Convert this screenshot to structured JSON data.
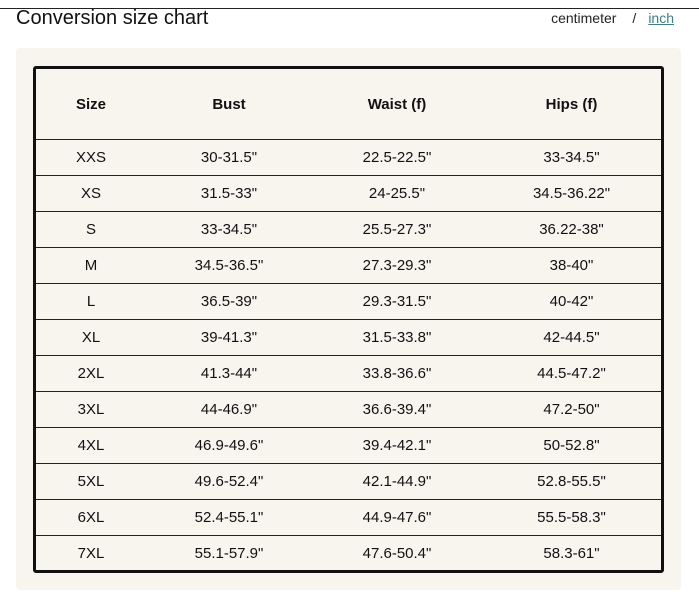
{
  "header": {
    "title": "Conversion size chart",
    "units": {
      "centimeter": "centimeter",
      "separator": "/",
      "inch": "inch",
      "active": "inch"
    }
  },
  "table": {
    "columns": [
      "Size",
      "Bust",
      "Waist (f)",
      "Hips (f)"
    ],
    "rows": [
      [
        "XXS",
        "30-31.5\"",
        "22.5-22.5\"",
        "33-34.5\""
      ],
      [
        "XS",
        "31.5-33\"",
        "24-25.5\"",
        "34.5-36.22\""
      ],
      [
        "S",
        "33-34.5\"",
        "25.5-27.3\"",
        "36.22-38\""
      ],
      [
        "M",
        "34.5-36.5\"",
        "27.3-29.3\"",
        "38-40\""
      ],
      [
        "L",
        "36.5-39\"",
        "29.3-31.5\"",
        "40-42\""
      ],
      [
        "XL",
        "39-41.3\"",
        "31.5-33.8\"",
        "42-44.5\""
      ],
      [
        "2XL",
        "41.3-44\"",
        "33.8-36.6\"",
        "44.5-47.2\""
      ],
      [
        "3XL",
        "44-46.9\"",
        "36.6-39.4\"",
        "47.2-50\""
      ],
      [
        "4XL",
        "46.9-49.6\"",
        "39.4-42.1\"",
        "50-52.8\""
      ],
      [
        "5XL",
        "49.6-52.4\"",
        "42.1-44.9\"",
        "52.8-55.5\""
      ],
      [
        "6XL",
        "52.4-55.1\"",
        "44.9-47.6\"",
        "55.5-58.3\""
      ],
      [
        "7XL",
        "55.1-57.9\"",
        "47.6-50.4\"",
        "58.3-61\""
      ]
    ]
  },
  "colors": {
    "panel": "#f8f5ef",
    "link": "#3a7f8a",
    "border": "#111111"
  }
}
